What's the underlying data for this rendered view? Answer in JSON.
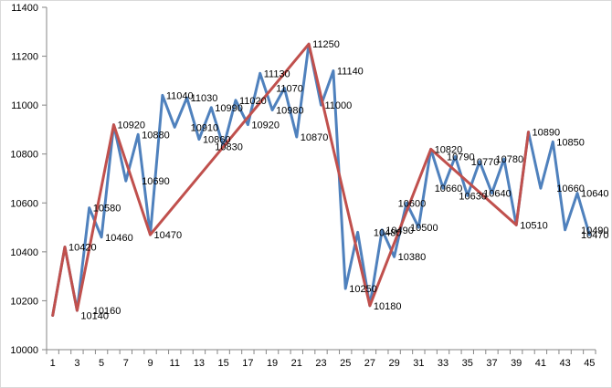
{
  "chart_data": {
    "type": "line",
    "title": "",
    "xlabel": "",
    "ylabel": "",
    "ylim": [
      10000,
      11400
    ],
    "y_ticks": [
      10000,
      10200,
      10400,
      10600,
      10800,
      11000,
      11200,
      11400
    ],
    "x_ticks": [
      1,
      3,
      5,
      7,
      9,
      11,
      13,
      15,
      17,
      19,
      21,
      23,
      25,
      27,
      29,
      31,
      33,
      35,
      37,
      39,
      41,
      43,
      45
    ],
    "grid": false,
    "legend": "none",
    "series": [
      {
        "color": "#4f81bd",
        "x": [
          1,
          2,
          3,
          4,
          5,
          6,
          7,
          8,
          9,
          10,
          11,
          12,
          13,
          14,
          15,
          16,
          17,
          18,
          19,
          20,
          21,
          22,
          23,
          24,
          25,
          26,
          27,
          28,
          29,
          30,
          31,
          32,
          33,
          34,
          35,
          36,
          37,
          38,
          39,
          40,
          41,
          42,
          43,
          44,
          45
        ],
        "values": [
          10140,
          10420,
          10160,
          10580,
          10460,
          10920,
          10690,
          10880,
          10470,
          11040,
          10910,
          11030,
          10860,
          10990,
          10830,
          11020,
          10920,
          11130,
          10980,
          11070,
          10870,
          11250,
          11000,
          11140,
          10250,
          10480,
          10180,
          10490,
          10380,
          10600,
          10500,
          10820,
          10660,
          10790,
          10630,
          10770,
          10640,
          10780,
          10510,
          10890,
          10660,
          10850,
          10490,
          10640,
          10470
        ]
      },
      {
        "color": "#c0504d",
        "x": [
          1,
          2,
          3,
          6,
          9,
          22,
          27,
          32,
          39,
          40
        ],
        "values": [
          10140,
          10420,
          10160,
          10920,
          10470,
          11250,
          10180,
          10820,
          10510,
          10890
        ]
      }
    ],
    "data_labels": [
      {
        "x": 3,
        "y": 10140,
        "text": "10140"
      },
      {
        "x": 4,
        "y": 10160,
        "text": "10160"
      },
      {
        "x": 2,
        "y": 10420,
        "text": "10420"
      },
      {
        "x": 4,
        "y": 10580,
        "text": "10580"
      },
      {
        "x": 5,
        "y": 10460,
        "text": "10460"
      },
      {
        "x": 6,
        "y": 10920,
        "text": "10920"
      },
      {
        "x": 8,
        "y": 10690,
        "text": "10690"
      },
      {
        "x": 8,
        "y": 10880,
        "text": "10880"
      },
      {
        "x": 9,
        "y": 10470,
        "text": "10470"
      },
      {
        "x": 10,
        "y": 11040,
        "text": "11040"
      },
      {
        "x": 12,
        "y": 10910,
        "text": "10910"
      },
      {
        "x": 12,
        "y": 11030,
        "text": "11030"
      },
      {
        "x": 13,
        "y": 10860,
        "text": "10860"
      },
      {
        "x": 14,
        "y": 10990,
        "text": "10990"
      },
      {
        "x": 14,
        "y": 10830,
        "text": "10830"
      },
      {
        "x": 16,
        "y": 11020,
        "text": "11020"
      },
      {
        "x": 17,
        "y": 10920,
        "text": "10920"
      },
      {
        "x": 18,
        "y": 11130,
        "text": "11130"
      },
      {
        "x": 19,
        "y": 10980,
        "text": "10980"
      },
      {
        "x": 19,
        "y": 11070,
        "text": "11070"
      },
      {
        "x": 21,
        "y": 10870,
        "text": "10870"
      },
      {
        "x": 22,
        "y": 11250,
        "text": "11250"
      },
      {
        "x": 23,
        "y": 11000,
        "text": "11000"
      },
      {
        "x": 24,
        "y": 11140,
        "text": "11140"
      },
      {
        "x": 25,
        "y": 10250,
        "text": "10250"
      },
      {
        "x": 27,
        "y": 10180,
        "text": "10180"
      },
      {
        "x": 27,
        "y": 10480,
        "text": "10480"
      },
      {
        "x": 28,
        "y": 10490,
        "text": "10490"
      },
      {
        "x": 29,
        "y": 10380,
        "text": "10380"
      },
      {
        "x": 29,
        "y": 10600,
        "text": "10600"
      },
      {
        "x": 30,
        "y": 10500,
        "text": "10500"
      },
      {
        "x": 32,
        "y": 10820,
        "text": "10820"
      },
      {
        "x": 32,
        "y": 10660,
        "text": "10660"
      },
      {
        "x": 33,
        "y": 10790,
        "text": "10790"
      },
      {
        "x": 34,
        "y": 10630,
        "text": "10630"
      },
      {
        "x": 35,
        "y": 10770,
        "text": "10770"
      },
      {
        "x": 36,
        "y": 10640,
        "text": "10640"
      },
      {
        "x": 37,
        "y": 10780,
        "text": "10780"
      },
      {
        "x": 39,
        "y": 10510,
        "text": "10510"
      },
      {
        "x": 40,
        "y": 10890,
        "text": "10890"
      },
      {
        "x": 42,
        "y": 10850,
        "text": "10850"
      },
      {
        "x": 42,
        "y": 10660,
        "text": "10660"
      },
      {
        "x": 44,
        "y": 10640,
        "text": "10640"
      },
      {
        "x": 44,
        "y": 10490,
        "text": "10490"
      },
      {
        "x": 44,
        "y": 10470,
        "text": "10470"
      }
    ]
  }
}
